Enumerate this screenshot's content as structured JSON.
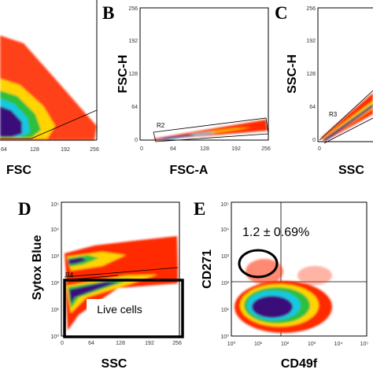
{
  "colors": {
    "density_low": "#ff2b00",
    "density_mid": "#ffd400",
    "density_green": "#2fbf3a",
    "density_cyan": "#18c8e0",
    "density_high": "#3b0a7a",
    "gate": "#000000"
  },
  "chart_data": [
    {
      "panel": "",
      "type": "scatter",
      "plot": "density",
      "xlabel": "FSC",
      "ylabel": "",
      "xlim": [
        0,
        256
      ],
      "x_ticks": [
        "64",
        "128",
        "192",
        "256"
      ],
      "y_ticks": [],
      "gates": []
    },
    {
      "panel": "B",
      "type": "scatter",
      "plot": "density",
      "xlabel": "FSC-A",
      "ylabel": "FSC-H",
      "xlim": [
        0,
        256
      ],
      "ylim": [
        0,
        256
      ],
      "x_ticks": [
        "0",
        "64",
        "128",
        "192",
        "256"
      ],
      "y_ticks": [
        "0",
        "64",
        "128",
        "192",
        "256"
      ],
      "gates": [
        {
          "label": "R2"
        }
      ]
    },
    {
      "panel": "C",
      "type": "scatter",
      "plot": "density",
      "xlabel": "SSC",
      "ylabel": "SSC-H",
      "xlim": [
        0,
        256
      ],
      "ylim": [
        0,
        256
      ],
      "x_ticks": [
        "0"
      ],
      "y_ticks": [
        "0",
        "64",
        "128",
        "192",
        "256"
      ],
      "gates": [
        {
          "label": "R3"
        }
      ]
    },
    {
      "panel": "D",
      "type": "scatter",
      "plot": "density",
      "xlabel": "SSC",
      "ylabel": "Sytox Blue",
      "xlim": [
        0,
        256
      ],
      "ylim": [
        1,
        100000
      ],
      "yscale": "log",
      "x_ticks": [
        "0",
        "64",
        "128",
        "192",
        "256"
      ],
      "y_ticks": [
        "10⁰",
        "10¹",
        "10²",
        "10³",
        "10⁴",
        "10⁵"
      ],
      "gates": [
        {
          "label": "R4"
        },
        {
          "label": "Live cells"
        }
      ]
    },
    {
      "panel": "E",
      "type": "scatter",
      "plot": "density",
      "xlabel": "CD49f",
      "ylabel": "CD271",
      "xlim": [
        1,
        100000
      ],
      "ylim": [
        1,
        100000
      ],
      "xscale": "log",
      "yscale": "log",
      "x_ticks": [
        "10⁰",
        "10¹",
        "10²",
        "10³",
        "10⁴",
        "10⁵"
      ],
      "y_ticks": [
        "10⁰",
        "10¹",
        "10²",
        "10³",
        "10⁴",
        "10⁵"
      ],
      "annotations": [
        "1.2 ± 0.69%"
      ],
      "gates": []
    }
  ]
}
